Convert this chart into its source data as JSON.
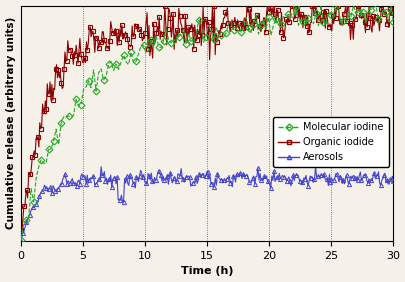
{
  "title": "",
  "xlabel": "Time (h)",
  "ylabel": "Cumulative release (arbitrary units)",
  "xlim": [
    0,
    30
  ],
  "ylim": [
    0,
    1.05
  ],
  "xticks": [
    0,
    5,
    10,
    15,
    20,
    25,
    30
  ],
  "grid_color": "#555555",
  "background_color": "#f5f0e8",
  "legend_labels": [
    "Molecular iodine",
    "Organic iodide",
    "Aerosols"
  ],
  "legend_colors": [
    "#22aa22",
    "#8b0000",
    "#4444cc"
  ],
  "series": {
    "molecular_iodine": {
      "color": "#22aa22",
      "marker": "D",
      "linestyle": "--",
      "linewidth": 0.8,
      "markersize": 3.5
    },
    "organic_iodide": {
      "color": "#8b0000",
      "marker": "s",
      "linestyle": "-",
      "linewidth": 0.8,
      "markersize": 3.0
    },
    "aerosols": {
      "color": "#4444cc",
      "marker": "^",
      "linestyle": "-",
      "linewidth": 0.8,
      "markersize": 3.0
    }
  }
}
